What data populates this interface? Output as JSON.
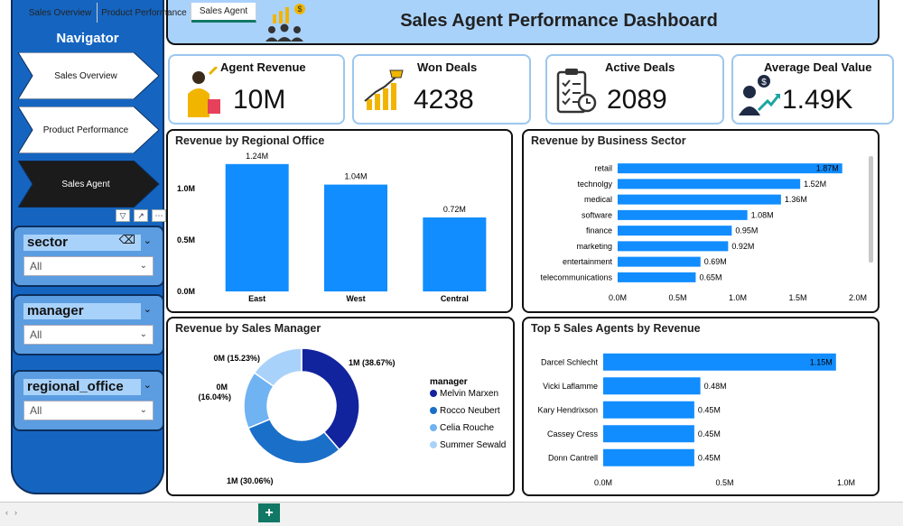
{
  "header": {
    "title": "Sales Agent Performance Dashboard",
    "icon": "team-growth-icon"
  },
  "navigator": {
    "title": "Navigator",
    "items": [
      {
        "label": "Sales Overview",
        "active": false
      },
      {
        "label": "Product Performance",
        "active": false
      },
      {
        "label": "Sales Agent",
        "active": true
      }
    ]
  },
  "slicers": [
    {
      "name": "sector",
      "value": "All"
    },
    {
      "name": "manager",
      "value": "All"
    },
    {
      "name": "regional_office",
      "value": "All"
    }
  ],
  "kpis": [
    {
      "label": "Agent Revenue",
      "value": "10M",
      "icon": "shopper-icon"
    },
    {
      "label": "Won Deals",
      "value": "4238",
      "icon": "trophy-growth-icon"
    },
    {
      "label": "Active Deals",
      "value": "2089",
      "icon": "checklist-clock-icon"
    },
    {
      "label": "Average Deal Value",
      "value": "1.49K",
      "icon": "money-growth-icon"
    }
  ],
  "colors": {
    "bar": "#118DFF",
    "nav": "#1565c0",
    "title_bg": "#a9d2fb",
    "donut": [
      "#12239E",
      "#1A6FC8",
      "#6FB3F2",
      "#A9D2FB"
    ]
  },
  "chart_data": [
    {
      "type": "bar",
      "title": "Revenue by Regional Office",
      "categories": [
        "East",
        "West",
        "Central"
      ],
      "values": [
        1.24,
        1.04,
        0.72
      ],
      "data_labels": [
        "1.24M",
        "1.04M",
        "0.72M"
      ],
      "yticks": [
        "0.0M",
        "0.5M",
        "1.0M"
      ],
      "ylim": [
        0,
        1.3
      ]
    },
    {
      "type": "bar",
      "orientation": "horizontal",
      "title": "Revenue by Business Sector",
      "categories": [
        "retail",
        "technolgy",
        "medical",
        "software",
        "finance",
        "marketing",
        "entertainment",
        "telecommunications"
      ],
      "values": [
        1.87,
        1.52,
        1.36,
        1.08,
        0.95,
        0.92,
        0.69,
        0.65
      ],
      "data_labels": [
        "1.87M",
        "1.52M",
        "1.36M",
        "1.08M",
        "0.95M",
        "0.92M",
        "0.69M",
        "0.65M"
      ],
      "xticks": [
        "0.0M",
        "0.5M",
        "1.0M",
        "1.5M",
        "2.0M"
      ],
      "xlim": [
        0,
        2.0
      ]
    },
    {
      "type": "pie",
      "title": "Revenue by Sales Manager",
      "legend_title": "manager",
      "labels": [
        "Melvin Marxen",
        "Rocco Neubert",
        "Celia Rouche",
        "Summer Sewald"
      ],
      "percentages": [
        38.67,
        30.06,
        16.04,
        15.23
      ],
      "data_labels": [
        "1M (38.67%)",
        "1M (30.06%)",
        "0M (16.04%)",
        "0M (15.23%)"
      ]
    },
    {
      "type": "bar",
      "orientation": "horizontal",
      "title": "Top 5 Sales Agents by Revenue",
      "categories": [
        "Darcel Schlecht",
        "Vicki Laflamme",
        "Kary Hendrixson",
        "Cassey Cress",
        "Donn Cantrell"
      ],
      "values": [
        1.15,
        0.48,
        0.45,
        0.45,
        0.45
      ],
      "data_labels": [
        "1.15M",
        "0.48M",
        "0.45M",
        "0.45M",
        "0.45M"
      ],
      "xticks": [
        "0.0M",
        "0.5M",
        "1.0M"
      ],
      "xlim": [
        0,
        1.2
      ]
    }
  ],
  "tabs": [
    {
      "label": "Sales Overview",
      "active": false
    },
    {
      "label": "Product Performance",
      "active": false
    },
    {
      "label": "Sales Agent",
      "active": true
    }
  ]
}
